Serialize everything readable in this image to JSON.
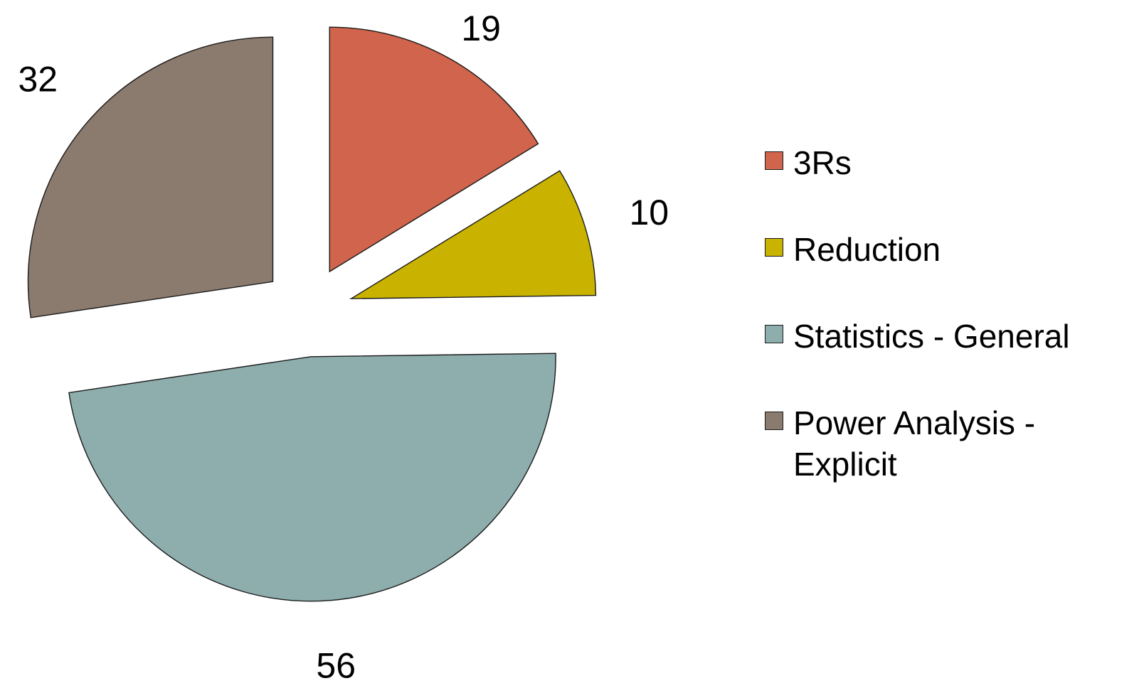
{
  "chart_data": {
    "type": "pie",
    "title": "",
    "exploded": true,
    "legend_position": "right",
    "slices": [
      {
        "label": "3Rs",
        "value": 19,
        "color": "#d0644c"
      },
      {
        "label": "Reduction",
        "value": 10,
        "color": "#c9b300"
      },
      {
        "label": "Statistics - General",
        "value": 56,
        "color": "#8eadad"
      },
      {
        "label": "Power Analysis - Explicit",
        "value": 32,
        "color": "#8b7a6e"
      }
    ]
  }
}
